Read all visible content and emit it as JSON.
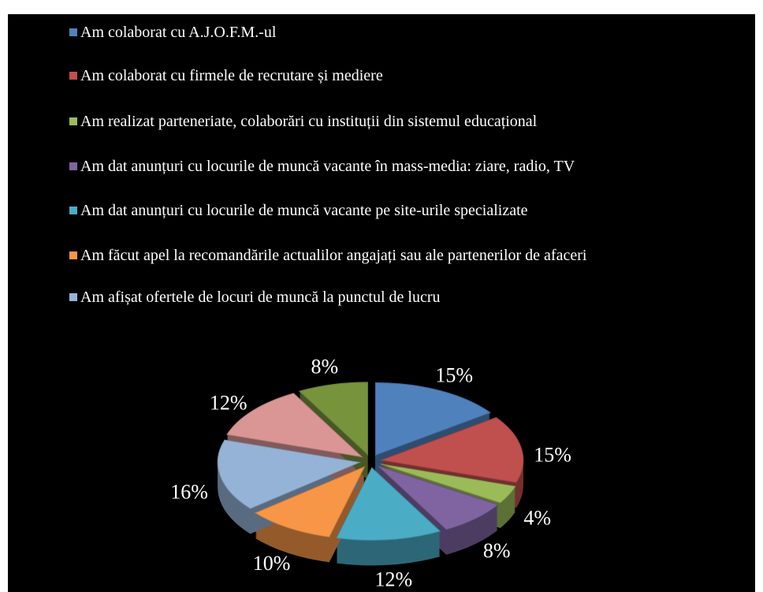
{
  "chart_data": {
    "type": "pie",
    "categories": [
      "Am colaborat cu A.J.O.F.M.-ul",
      "Am colaborat cu firmele de recrutare și mediere",
      "Am realizat parteneriate, colaborări cu instituții din sistemul educațional",
      "Am dat anunțuri cu locurile de muncă vacante în mass-media: ziare, radio, TV",
      "Am dat anunțuri cu locurile de muncă vacante pe site-urile specializate",
      "Am făcut apel la recomandările actualilor angajați sau ale partenerilor de afaceri",
      "Am afișat ofertele de locuri de muncă la punctul de lucru",
      null,
      null
    ],
    "values": [
      15,
      15,
      4,
      8,
      12,
      10,
      16,
      12,
      8
    ],
    "value_labels": [
      "15%",
      "15%",
      "4%",
      "8%",
      "12%",
      "10%",
      "16%",
      "12%",
      "8%"
    ],
    "colors": [
      "#4f81bd",
      "#c0504d",
      "#9bbb59",
      "#8064a2",
      "#4bacc6",
      "#f79646",
      "#95b3d7",
      "#d99694",
      "#77933c"
    ],
    "legend": "top"
  }
}
